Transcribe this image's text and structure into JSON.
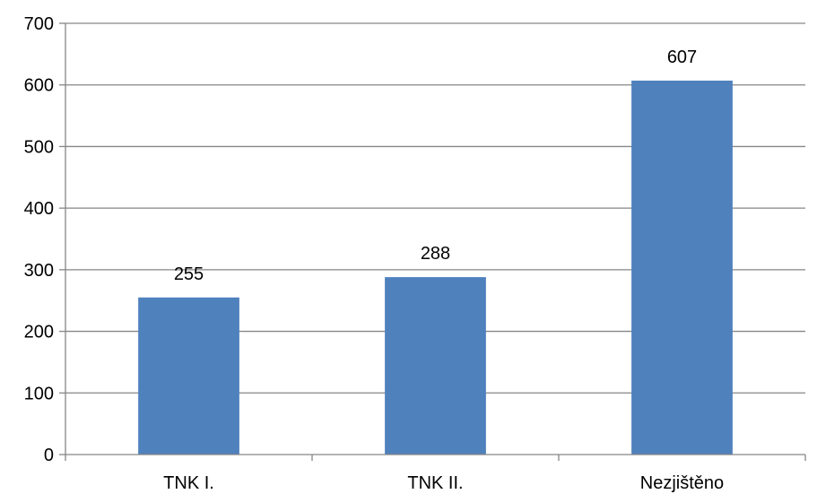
{
  "chart_data": {
    "type": "bar",
    "categories": [
      "TNK I.",
      "TNK II.",
      "Nezjištěno"
    ],
    "values": [
      255,
      288,
      607
    ],
    "data_labels": [
      "255",
      "288",
      "607"
    ],
    "title": "",
    "xlabel": "",
    "ylabel": "",
    "ylim": [
      0,
      700
    ],
    "yticks": [
      0,
      100,
      200,
      300,
      400,
      500,
      600,
      700
    ],
    "ytick_labels": [
      "0",
      "100",
      "200",
      "300",
      "400",
      "500",
      "600",
      "700"
    ],
    "grid": true,
    "legend": "none",
    "colors": {
      "bar": "#4f81bd",
      "grid": "#868686",
      "axis": "#868686"
    }
  }
}
